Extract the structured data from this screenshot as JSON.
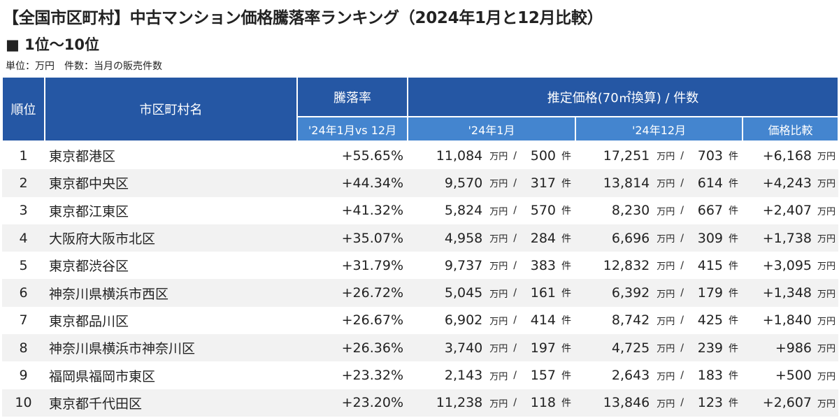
{
  "title": "【全国市区町村】中古マンション価格騰落率ランキング（2024年1月と12月比較）",
  "subtitle": "■ 1位〜10位",
  "unit_note": "単位：万円　件数：当月の販売件数",
  "headers": {
    "rank": "順位",
    "name": "市区町村名",
    "rate": "騰落率",
    "rate_sub": "'24年1月vs 12月",
    "price": "推定価格(70㎡換算) / 件数",
    "jan": "'24年1月",
    "dec": "'24年12月",
    "diff": "価格比較"
  },
  "units": {
    "man": "万円",
    "slash": "/",
    "ken": "件"
  },
  "rows": [
    {
      "rank": "1",
      "name": "東京都港区",
      "rate": "+55.65%",
      "jan_price": "11,084",
      "jan_count": "500",
      "dec_price": "17,251",
      "dec_count": "703",
      "diff": "+6,168"
    },
    {
      "rank": "2",
      "name": "東京都中央区",
      "rate": "+44.34%",
      "jan_price": "9,570",
      "jan_count": "317",
      "dec_price": "13,814",
      "dec_count": "614",
      "diff": "+4,243"
    },
    {
      "rank": "3",
      "name": "東京都江東区",
      "rate": "+41.32%",
      "jan_price": "5,824",
      "jan_count": "570",
      "dec_price": "8,230",
      "dec_count": "667",
      "diff": "+2,407"
    },
    {
      "rank": "4",
      "name": "大阪府大阪市北区",
      "rate": "+35.07%",
      "jan_price": "4,958",
      "jan_count": "284",
      "dec_price": "6,696",
      "dec_count": "309",
      "diff": "+1,738"
    },
    {
      "rank": "5",
      "name": "東京都渋谷区",
      "rate": "+31.79%",
      "jan_price": "9,737",
      "jan_count": "383",
      "dec_price": "12,832",
      "dec_count": "415",
      "diff": "+3,095"
    },
    {
      "rank": "6",
      "name": "神奈川県横浜市西区",
      "rate": "+26.72%",
      "jan_price": "5,045",
      "jan_count": "161",
      "dec_price": "6,392",
      "dec_count": "179",
      "diff": "+1,348"
    },
    {
      "rank": "7",
      "name": "東京都品川区",
      "rate": "+26.67%",
      "jan_price": "6,902",
      "jan_count": "414",
      "dec_price": "8,742",
      "dec_count": "425",
      "diff": "+1,840"
    },
    {
      "rank": "8",
      "name": "神奈川県横浜市神奈川区",
      "rate": "+26.36%",
      "jan_price": "3,740",
      "jan_count": "197",
      "dec_price": "4,725",
      "dec_count": "239",
      "diff": "+986"
    },
    {
      "rank": "9",
      "name": "福岡県福岡市東区",
      "rate": "+23.32%",
      "jan_price": "2,143",
      "jan_count": "157",
      "dec_price": "2,643",
      "dec_count": "183",
      "diff": "+500"
    },
    {
      "rank": "10",
      "name": "東京都千代田区",
      "rate": "+23.20%",
      "jan_price": "11,238",
      "jan_count": "118",
      "dec_price": "13,846",
      "dec_count": "123",
      "diff": "+2,607"
    }
  ]
}
